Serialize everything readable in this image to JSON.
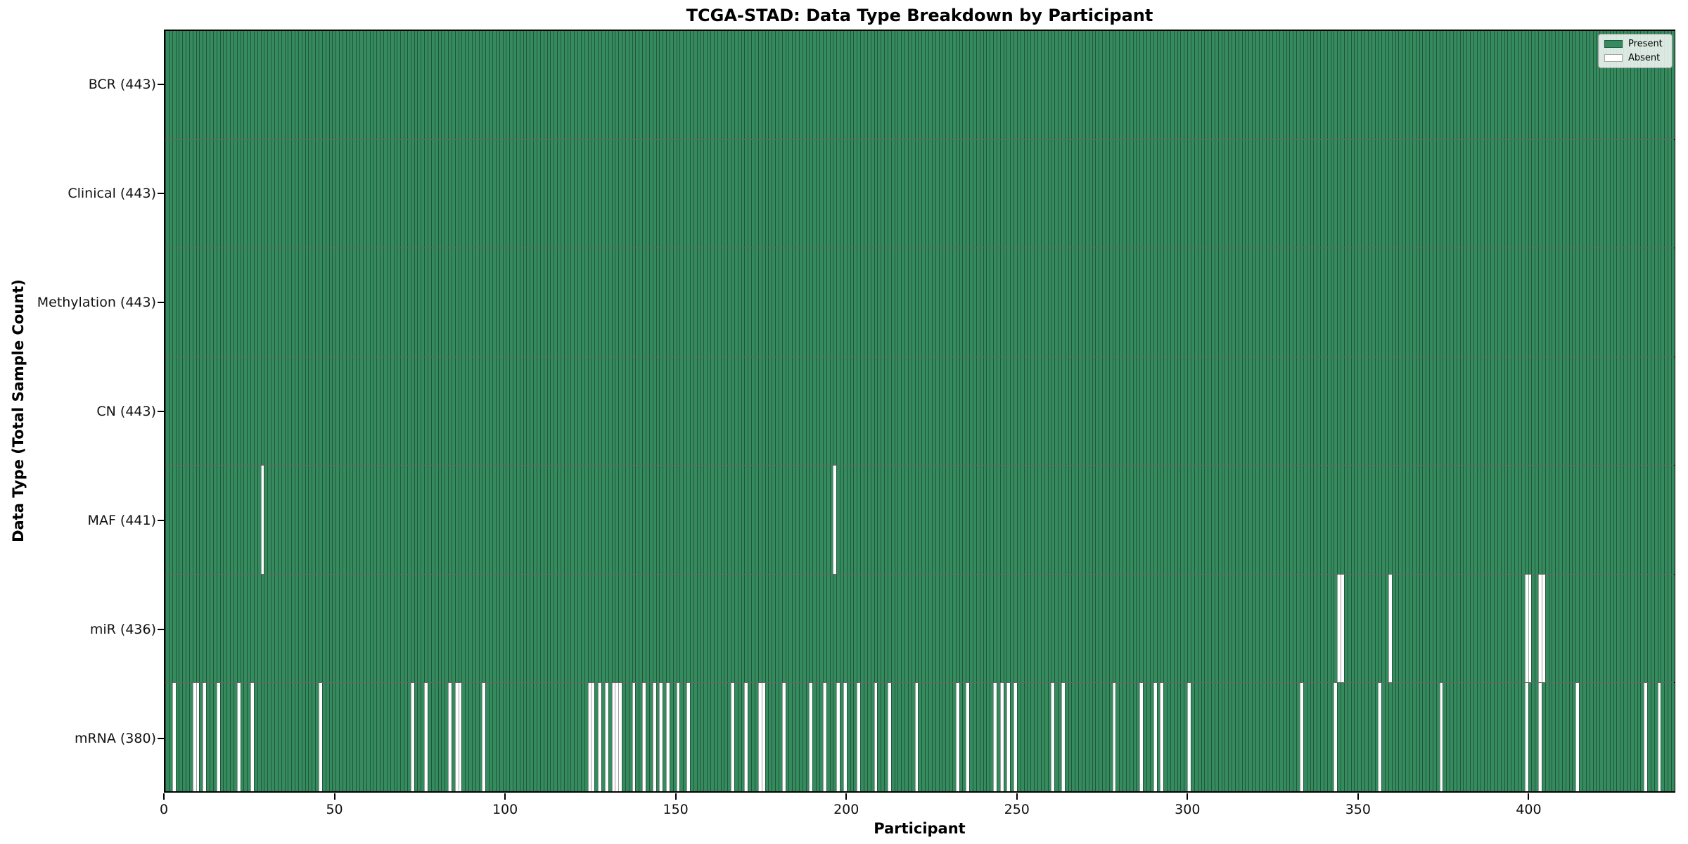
{
  "chart_data": {
    "type": "heatmap",
    "title": "TCGA-STAD: Data Type Breakdown by Participant",
    "xlabel": "Participant",
    "ylabel": "Data Type (Total Sample Count)",
    "n_participants": 443,
    "x_ticks": [
      0,
      50,
      100,
      150,
      200,
      250,
      300,
      350,
      400
    ],
    "x_range": [
      0,
      443
    ],
    "grid": false,
    "legend_position": "upper right",
    "colors": {
      "present": "#358b5e",
      "absent": "#ffffff",
      "cell_edge": "rgba(0,0,0,0.38)",
      "row_divider": "rgba(0,0,0,0.60)",
      "plot_border": "#000000",
      "legend_background": "rgba(255,255,255,0.82)",
      "legend_border": "#9a9a9a",
      "text": "#000000"
    },
    "legend": [
      {
        "label": "Present",
        "color": "#358b5e"
      },
      {
        "label": "Absent",
        "color": "#ffffff"
      }
    ],
    "value_encoding": "1 = data type present for participant (green), 0 = absent (white)",
    "rows": [
      {
        "name": "BCR",
        "label": "BCR (443)",
        "total": 443,
        "absent": []
      },
      {
        "name": "Clinical",
        "label": "Clinical (443)",
        "total": 443,
        "absent": []
      },
      {
        "name": "Methylation",
        "label": "Methylation (443)",
        "total": 443,
        "absent": []
      },
      {
        "name": "CN",
        "label": "CN (443)",
        "total": 443,
        "absent": []
      },
      {
        "name": "MAF",
        "label": "MAF (441)",
        "total": 441,
        "absent": [
          28,
          196
        ]
      },
      {
        "name": "miR",
        "label": "miR (436)",
        "total": 436,
        "absent": [
          344,
          345,
          359,
          399,
          400,
          403,
          404
        ]
      },
      {
        "name": "mRNA",
        "label": "mRNA (380)",
        "total": 380,
        "absent": [
          2,
          8,
          9,
          11,
          15,
          21,
          25,
          45,
          72,
          76,
          83,
          85,
          86,
          93,
          124,
          125,
          127,
          129,
          131,
          132,
          133,
          137,
          140,
          143,
          145,
          147,
          150,
          153,
          166,
          170,
          174,
          175,
          181,
          189,
          193,
          197,
          199,
          203,
          208,
          212,
          220,
          232,
          235,
          243,
          245,
          247,
          249,
          260,
          263,
          278,
          286,
          290,
          292,
          300,
          333,
          343,
          356,
          374,
          399,
          403,
          414,
          434,
          438
        ]
      }
    ]
  }
}
